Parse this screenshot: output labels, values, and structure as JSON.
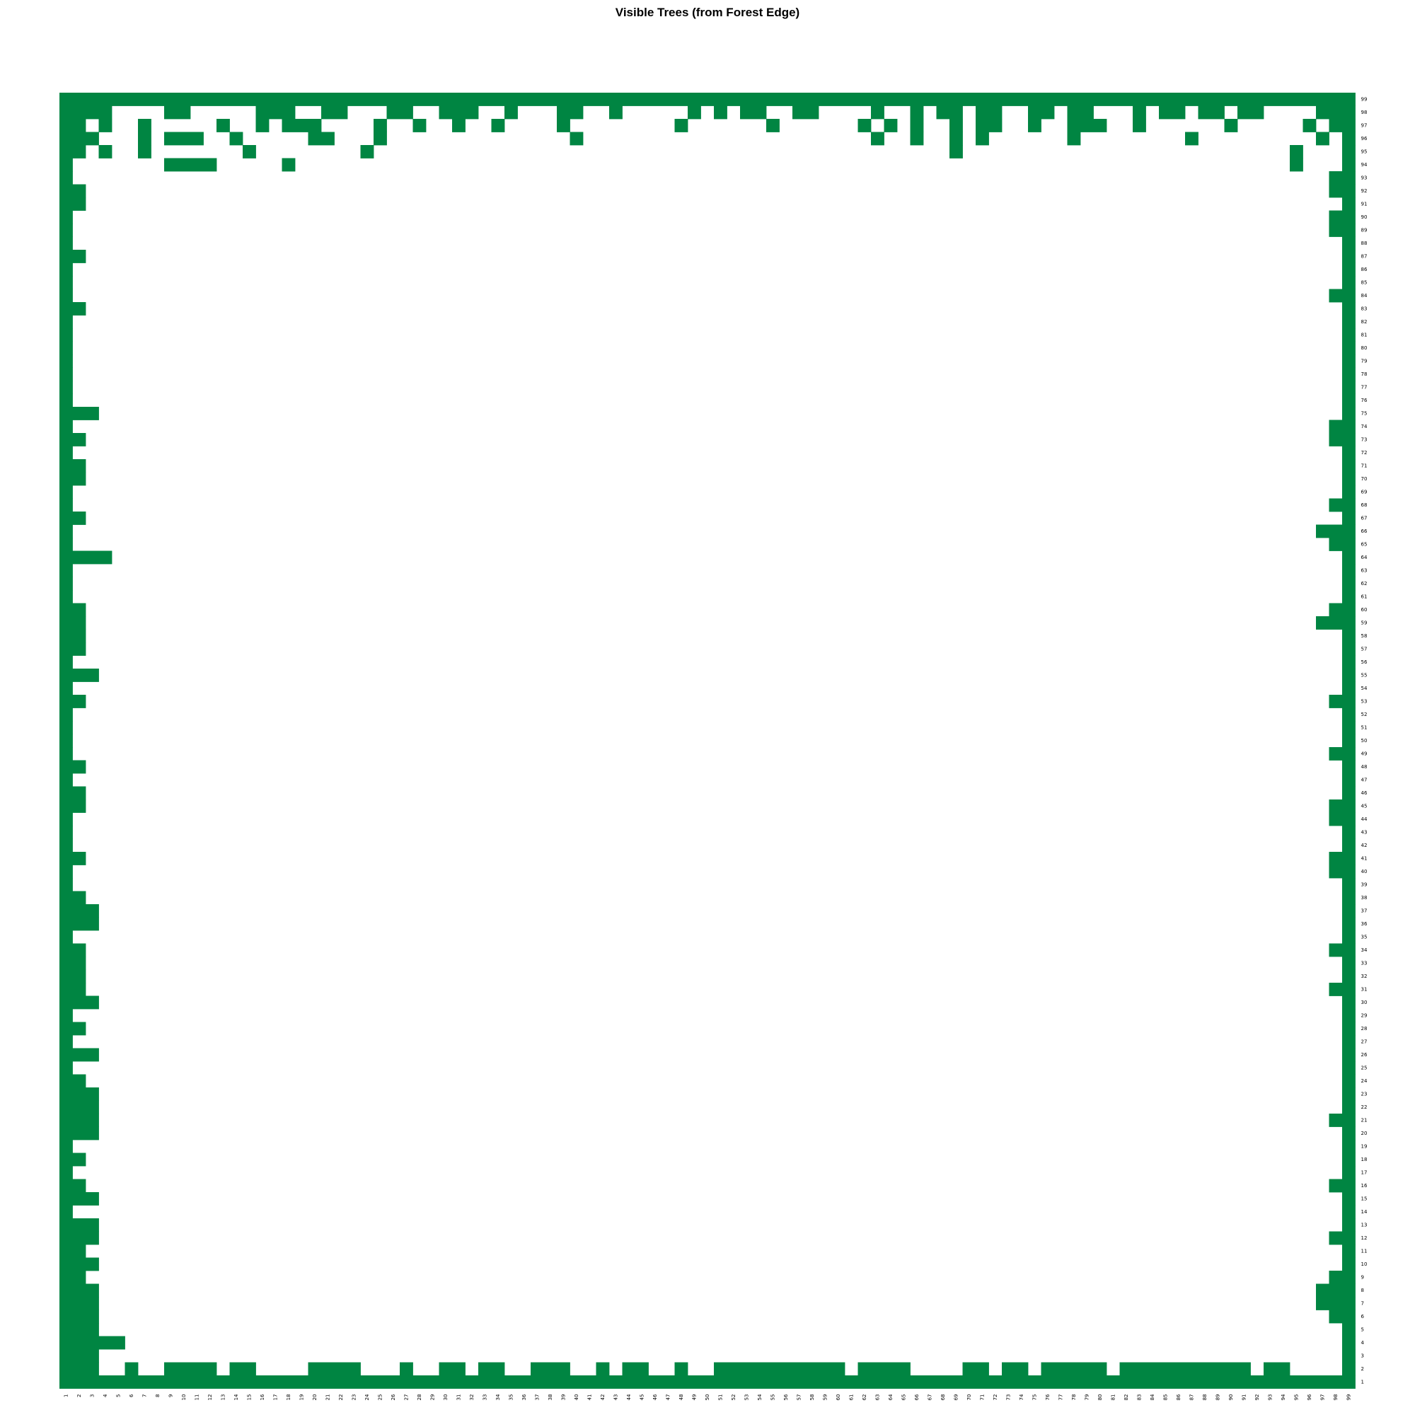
{
  "chart_data": {
    "type": "heatmap",
    "title": "Visible Trees (from Forest Edge)",
    "xlabel": "",
    "ylabel": "",
    "x_ticks": [
      1,
      2,
      3,
      4,
      5,
      6,
      7,
      8,
      9,
      10,
      11,
      12,
      13,
      14,
      15,
      16,
      17,
      18,
      19,
      20,
      21,
      22,
      23,
      24,
      25,
      26,
      27,
      28,
      29,
      30,
      31,
      32,
      33,
      34,
      35,
      36,
      37,
      38,
      39,
      40,
      41,
      42,
      43,
      44,
      45,
      46,
      47,
      48,
      49,
      50,
      51,
      52,
      53,
      54,
      55,
      56,
      57,
      58,
      59,
      60,
      61,
      62,
      63,
      64,
      65,
      66,
      67,
      68,
      69,
      70,
      71,
      72,
      73,
      74,
      75,
      76,
      77,
      78,
      79,
      80,
      81,
      82,
      83,
      84,
      85,
      86,
      87,
      88,
      89,
      90,
      91,
      92,
      93,
      94,
      95,
      96,
      97,
      98,
      99
    ],
    "y_ticks_top_to_bottom": [
      99,
      98,
      97,
      96,
      95,
      94,
      93,
      92,
      91,
      90,
      89,
      88,
      87,
      86,
      85,
      84,
      83,
      82,
      81,
      80,
      79,
      78,
      77,
      76,
      75,
      74,
      73,
      72,
      71,
      70,
      69,
      68,
      67,
      66,
      65,
      64,
      63,
      62,
      61,
      60,
      59,
      58,
      57,
      56,
      55,
      54,
      53,
      52,
      51,
      50,
      49,
      48,
      47,
      46,
      45,
      44,
      43,
      42,
      41,
      40,
      39,
      38,
      37,
      36,
      35,
      34,
      33,
      32,
      31,
      30,
      29,
      28,
      27,
      26,
      25,
      24,
      23,
      22,
      21,
      20,
      19,
      18,
      17,
      16,
      15,
      14,
      13,
      12,
      11,
      10,
      9,
      8,
      7,
      6,
      5,
      4,
      3,
      2,
      1
    ],
    "grid": false,
    "legend": "none",
    "colors": {
      "visible": "#008542",
      "hidden": "#ffffff"
    },
    "grid_rows_top_to_bottom": [
      "111111111111111111111111111111111111111111111111111111111111111111111111111111111111111111111111111",
      "111100001100000111001100011001110010001100100000101011001100001001011011001101100010110110110000111",
      "110100100000100101110000100100100100001000000001000000100000010101001011001001110010000001000001011",
      "111000101110010000011000100000000000000100000000000000000000001001001010000001000000001000000000101",
      "110100100000001000000001000000000000000000000000000000000000000000001000000000000000000000000010001",
      "100000001111000001000000000000000000000000000000000000000000000000000000000000000000000000000010001",
      "100000000000000000000000000000000000000000000000000000000000000000000000000000000000000000000000011",
      "110000000000000000000000000000000000000000000000000000000000000000000000000000000000000000000000011",
      "110000000000000000000000000000000000000000000000000000000000000000000000000000000000000000000000001",
      "100000000000000000000000000000000000000000000000000000000000000000000000000000000000000000000000011",
      "100000000000000000000000000000000000000000000000000000000000000000000000000000000000000000000000011",
      "100000000000000000000000000000000000000000000000000000000000000000000000000000000000000000000000001",
      "110000000000000000000000000000000000000000000000000000000000000000000000000000000000000000000000001",
      "100000000000000000000000000000000000000000000000000000000000000000000000000000000000000000000000001",
      "100000000000000000000000000000000000000000000000000000000000000000000000000000000000000000000000001",
      "100000000000000000000000000000000000000000000000000000000000000000000000000000000000000000000000011",
      "110000000000000000000000000000000000000000000000000000000000000000000000000000000000000000000000001",
      "100000000000000000000000000000000000000000000000000000000000000000000000000000000000000000000000001",
      "100000000000000000000000000000000000000000000000000000000000000000000000000000000000000000000000001",
      "100000000000000000000000000000000000000000000000000000000000000000000000000000000000000000000000001",
      "100000000000000000000000000000000000000000000000000000000000000000000000000000000000000000000000001",
      "100000000000000000000000000000000000000000000000000000000000000000000000000000000000000000000000001",
      "100000000000000000000000000000000000000000000000000000000000000000000000000000000000000000000000001",
      "100000000000000000000000000000000000000000000000000000000000000000000000000000000000000000000000001",
      "111000000000000000000000000000000000000000000000000000000000000000000000000000000000000000000000001",
      "100000000000000000000000000000000000000000000000000000000000000000000000000000000000000000000000011",
      "110000000000000000000000000000000000000000000000000000000000000000000000000000000000000000000000011",
      "100000000000000000000000000000000000000000000000000000000000000000000000000000000000000000000000001",
      "110000000000000000000000000000000000000000000000000000000000000000000000000000000000000000000000001",
      "110000000000000000000000000000000000000000000000000000000000000000000000000000000000000000000000001",
      "100000000000000000000000000000000000000000000000000000000000000000000000000000000000000000000000001",
      "100000000000000000000000000000000000000000000000000000000000000000000000000000000000000000000000011",
      "110000000000000000000000000000000000000000000000000000000000000000000000000000000000000000000000001",
      "100000000000000000000000000000000000000000000000000000000000000000000000000000000000000000000000111",
      "100000000000000000000000000000000000000000000000000000000000000000000000000000000000000000000000011",
      "111100000000000000000000000000000000000000000000000000000000000000000000000000000000000000000000001",
      "100000000000000000000000000000000000000000000000000000000000000000000000000000000000000000000000001",
      "100000000000000000000000000000000000000000000000000000000000000000000000000000000000000000000000001",
      "100000000000000000000000000000000000000000000000000000000000000000000000000000000000000000000000001",
      "110000000000000000000000000000000000000000000000000000000000000000000000000000000000000000000000011",
      "110000000000000000000000000000000000000000000000000000000000000000000000000000000000000000000000111",
      "110000000000000000000000000000000000000000000000000000000000000000000000000000000000000000000000001",
      "110000000000000000000000000000000000000000000000000000000000000000000000000000000000000000000000001",
      "100000000000000000000000000000000000000000000000000000000000000000000000000000000000000000000000001",
      "111000000000000000000000000000000000000000000000000000000000000000000000000000000000000000000000001",
      "100000000000000000000000000000000000000000000000000000000000000000000000000000000000000000000000001",
      "110000000000000000000000000000000000000000000000000000000000000000000000000000000000000000000000011",
      "100000000000000000000000000000000000000000000000000000000000000000000000000000000000000000000000001",
      "100000000000000000000000000000000000000000000000000000000000000000000000000000000000000000000000001",
      "100000000000000000000000000000000000000000000000000000000000000000000000000000000000000000000000001",
      "100000000000000000000000000000000000000000000000000000000000000000000000000000000000000000000000011",
      "110000000000000000000000000000000000000000000000000000000000000000000000000000000000000000000000001",
      "100000000000000000000000000000000000000000000000000000000000000000000000000000000000000000000000001",
      "110000000000000000000000000000000000000000000000000000000000000000000000000000000000000000000000001",
      "110000000000000000000000000000000000000000000000000000000000000000000000000000000000000000000000011",
      "100000000000000000000000000000000000000000000000000000000000000000000000000000000000000000000000011",
      "100000000000000000000000000000000000000000000000000000000000000000000000000000000000000000000000001",
      "100000000000000000000000000000000000000000000000000000000000000000000000000000000000000000000000001",
      "110000000000000000000000000000000000000000000000000000000000000000000000000000000000000000000000011",
      "100000000000000000000000000000000000000000000000000000000000000000000000000000000000000000000000011",
      "100000000000000000000000000000000000000000000000000000000000000000000000000000000000000000000000001",
      "110000000000000000000000000000000000000000000000000000000000000000000000000000000000000000000000001",
      "111000000000000000000000000000000000000000000000000000000000000000000000000000000000000000000000001",
      "111000000000000000000000000000000000000000000000000000000000000000000000000000000000000000000000001",
      "100000000000000000000000000000000000000000000000000000000000000000000000000000000000000000000000001",
      "110000000000000000000000000000000000000000000000000000000000000000000000000000000000000000000000011",
      "110000000000000000000000000000000000000000000000000000000000000000000000000000000000000000000000001",
      "110000000000000000000000000000000000000000000000000000000000000000000000000000000000000000000000001",
      "110000000000000000000000000000000000000000000000000000000000000000000000000000000000000000000000011",
      "111000000000000000000000000000000000000000000000000000000000000000000000000000000000000000000000001",
      "100000000000000000000000000000000000000000000000000000000000000000000000000000000000000000000000001",
      "110000000000000000000000000000000000000000000000000000000000000000000000000000000000000000000000001",
      "100000000000000000000000000000000000000000000000000000000000000000000000000000000000000000000000001",
      "111000000000000000000000000000000000000000000000000000000000000000000000000000000000000000000000001",
      "100000000000000000000000000000000000000000000000000000000000000000000000000000000000000000000000001",
      "110000000000000000000000000000000000000000000000000000000000000000000000000000000000000000000000001",
      "111000000000000000000000000000000000000000000000000000000000000000000000000000000000000000000000001",
      "111000000000000000000000000000000000000000000000000000000000000000000000000000000000000000000000001",
      "111000000000000000000000000000000000000000000000000000000000000000000000000000000000000000000000011",
      "111000000000000000000000000000000000000000000000000000000000000000000000000000000000000000000000001",
      "100000000000000000000000000000000000000000000000000000000000000000000000000000000000000000000000001",
      "110000000000000000000000000000000000000000000000000000000000000000000000000000000000000000000000001",
      "100000000000000000000000000000000000000000000000000000000000000000000000000000000000000000000000001",
      "110000000000000000000000000000000000000000000000000000000000000000000000000000000000000000000000011",
      "111000000000000000000000000000000000000000000000000000000000000000000000000000000000000000000000001",
      "100000000000000000000000000000000000000000000000000000000000000000000000000000000000000000000000001",
      "111000000000000000000000000000000000000000000000000000000000000000000000000000000000000000000000001",
      "111000000000000000000000000000000000000000000000000000000000000000000000000000000000000000000000011",
      "110000000000000000000000000000000000000000000000000000000000000000000000000000000000000000000000001",
      "111000000000000000000000000000000000000000000000000000000000000000000000000000000000000000000000001",
      "110000000000000000000000000000000000000000000000000000000000000000000000000000000000000000000000011",
      "111000000000000000000000000000000000000000000000000000000000000000000000000000000000000000000000111",
      "111000000000000000000000000000000000000000000000000000000000000000000000000000000000000000000000111",
      "111000000000000000000000000000000000000000000000000000000000000000000000000000000000000000000000011",
      "111000000000000000000000000000000000000000000000000000000000000000000000000000000000000000000000001",
      "111110000000000000000000000000000000000000000000000000000000000000000000000000000000000000000000001",
      "111000000000000000000000000000000000000000000000000000000000000000000000000000000000000000000000001",
      "111001001111011000011110001001101100111001011001001111111111011110000110110111110111111111101100001",
      "111111111111111111111111111111111111111111111111111111111111111111111111111111111111111111111111111"
    ]
  }
}
